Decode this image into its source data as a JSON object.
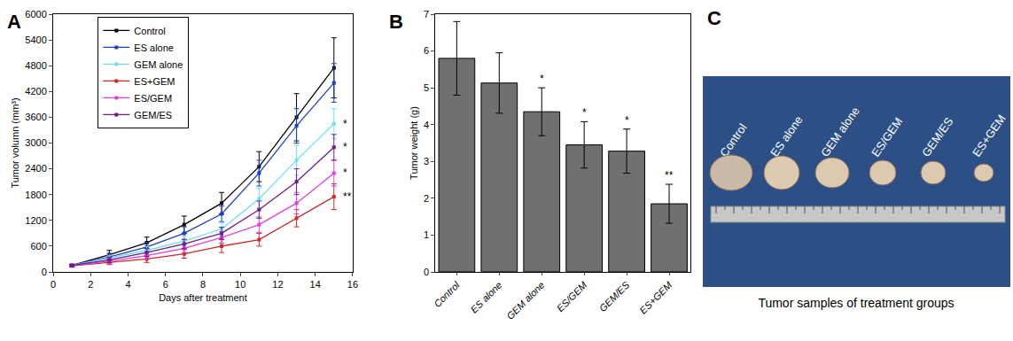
{
  "chart_data": [
    {
      "panel": "A",
      "type": "line",
      "x_label": "Days after treatment",
      "y_label": "Tumor volumn (mm³)",
      "x": [
        1,
        3,
        5,
        7,
        9,
        11,
        13,
        15
      ],
      "xlim": [
        0,
        16
      ],
      "xticks": [
        0,
        2,
        4,
        6,
        8,
        10,
        12,
        14,
        16
      ],
      "ylim": [
        0,
        6000
      ],
      "yticks": [
        0,
        600,
        1200,
        1800,
        2400,
        3000,
        3600,
        4200,
        4800,
        5400,
        6000
      ],
      "legend": "top-left",
      "grid": false,
      "marker": "square",
      "series": [
        {
          "name": "Control",
          "color": "#000000",
          "values": [
            150,
            400,
            680,
            1100,
            1600,
            2450,
            3600,
            4750
          ],
          "errors": [
            30,
            100,
            130,
            200,
            250,
            350,
            550,
            700
          ]
        },
        {
          "name": "ES alone",
          "color": "#1f3fc8",
          "values": [
            150,
            350,
            580,
            900,
            1350,
            2300,
            3400,
            4400
          ],
          "errors": [
            30,
            80,
            100,
            150,
            180,
            300,
            400,
            450
          ]
        },
        {
          "name": "GEM alone",
          "color": "#70e0f0",
          "values": [
            150,
            320,
            500,
            720,
            1000,
            1700,
            2600,
            3450
          ],
          "errors": [
            30,
            70,
            90,
            120,
            150,
            250,
            350,
            350
          ]
        },
        {
          "name": "ES+GEM",
          "color": "#d02828",
          "values": [
            140,
            220,
            300,
            420,
            600,
            750,
            1250,
            1750
          ],
          "errors": [
            20,
            50,
            80,
            100,
            150,
            150,
            200,
            300
          ]
        },
        {
          "name": "ES/GEM",
          "color": "#e040e0",
          "values": [
            140,
            250,
            380,
            550,
            800,
            1100,
            1600,
            2300
          ],
          "errors": [
            20,
            60,
            80,
            100,
            130,
            180,
            250,
            300
          ]
        },
        {
          "name": "GEM/ES",
          "color": "#6a1f8a",
          "values": [
            150,
            280,
            450,
            650,
            900,
            1450,
            2100,
            2900
          ],
          "errors": [
            25,
            60,
            90,
            110,
            140,
            200,
            300,
            300
          ]
        }
      ],
      "annotations": [
        {
          "x": 15,
          "y": 3450,
          "text": "*"
        },
        {
          "x": 15,
          "y": 2900,
          "text": "*"
        },
        {
          "x": 15,
          "y": 2300,
          "text": "*"
        },
        {
          "x": 15,
          "y": 1750,
          "text": "**"
        }
      ]
    },
    {
      "panel": "B",
      "type": "bar",
      "y_label": "Tumor weight (g)",
      "categories": [
        "Control",
        "ES alone",
        "GEM alone",
        "ES/GEM",
        "GEM/ES",
        "ES+GEM"
      ],
      "values": [
        5.8,
        5.13,
        4.35,
        3.45,
        3.28,
        1.85
      ],
      "errors": [
        1.0,
        0.82,
        0.65,
        0.63,
        0.6,
        0.53
      ],
      "color": "#707070",
      "ylim": [
        0,
        7
      ],
      "yticks": [
        0,
        1,
        2,
        3,
        4,
        5,
        6,
        7
      ],
      "grid": false,
      "annotations": [
        {
          "category": "GEM alone",
          "text": "*"
        },
        {
          "category": "ES/GEM",
          "text": "*"
        },
        {
          "category": "GEM/ES",
          "text": "*"
        },
        {
          "category": "ES+GEM",
          "text": "**"
        }
      ]
    }
  ],
  "photo": {
    "panel": "C",
    "labels": [
      "Control",
      "ES alone",
      "GEM alone",
      "ES/GEM",
      "GEM/ES",
      "ES+GEM"
    ],
    "caption": "Tumor samples of treatment groups"
  }
}
